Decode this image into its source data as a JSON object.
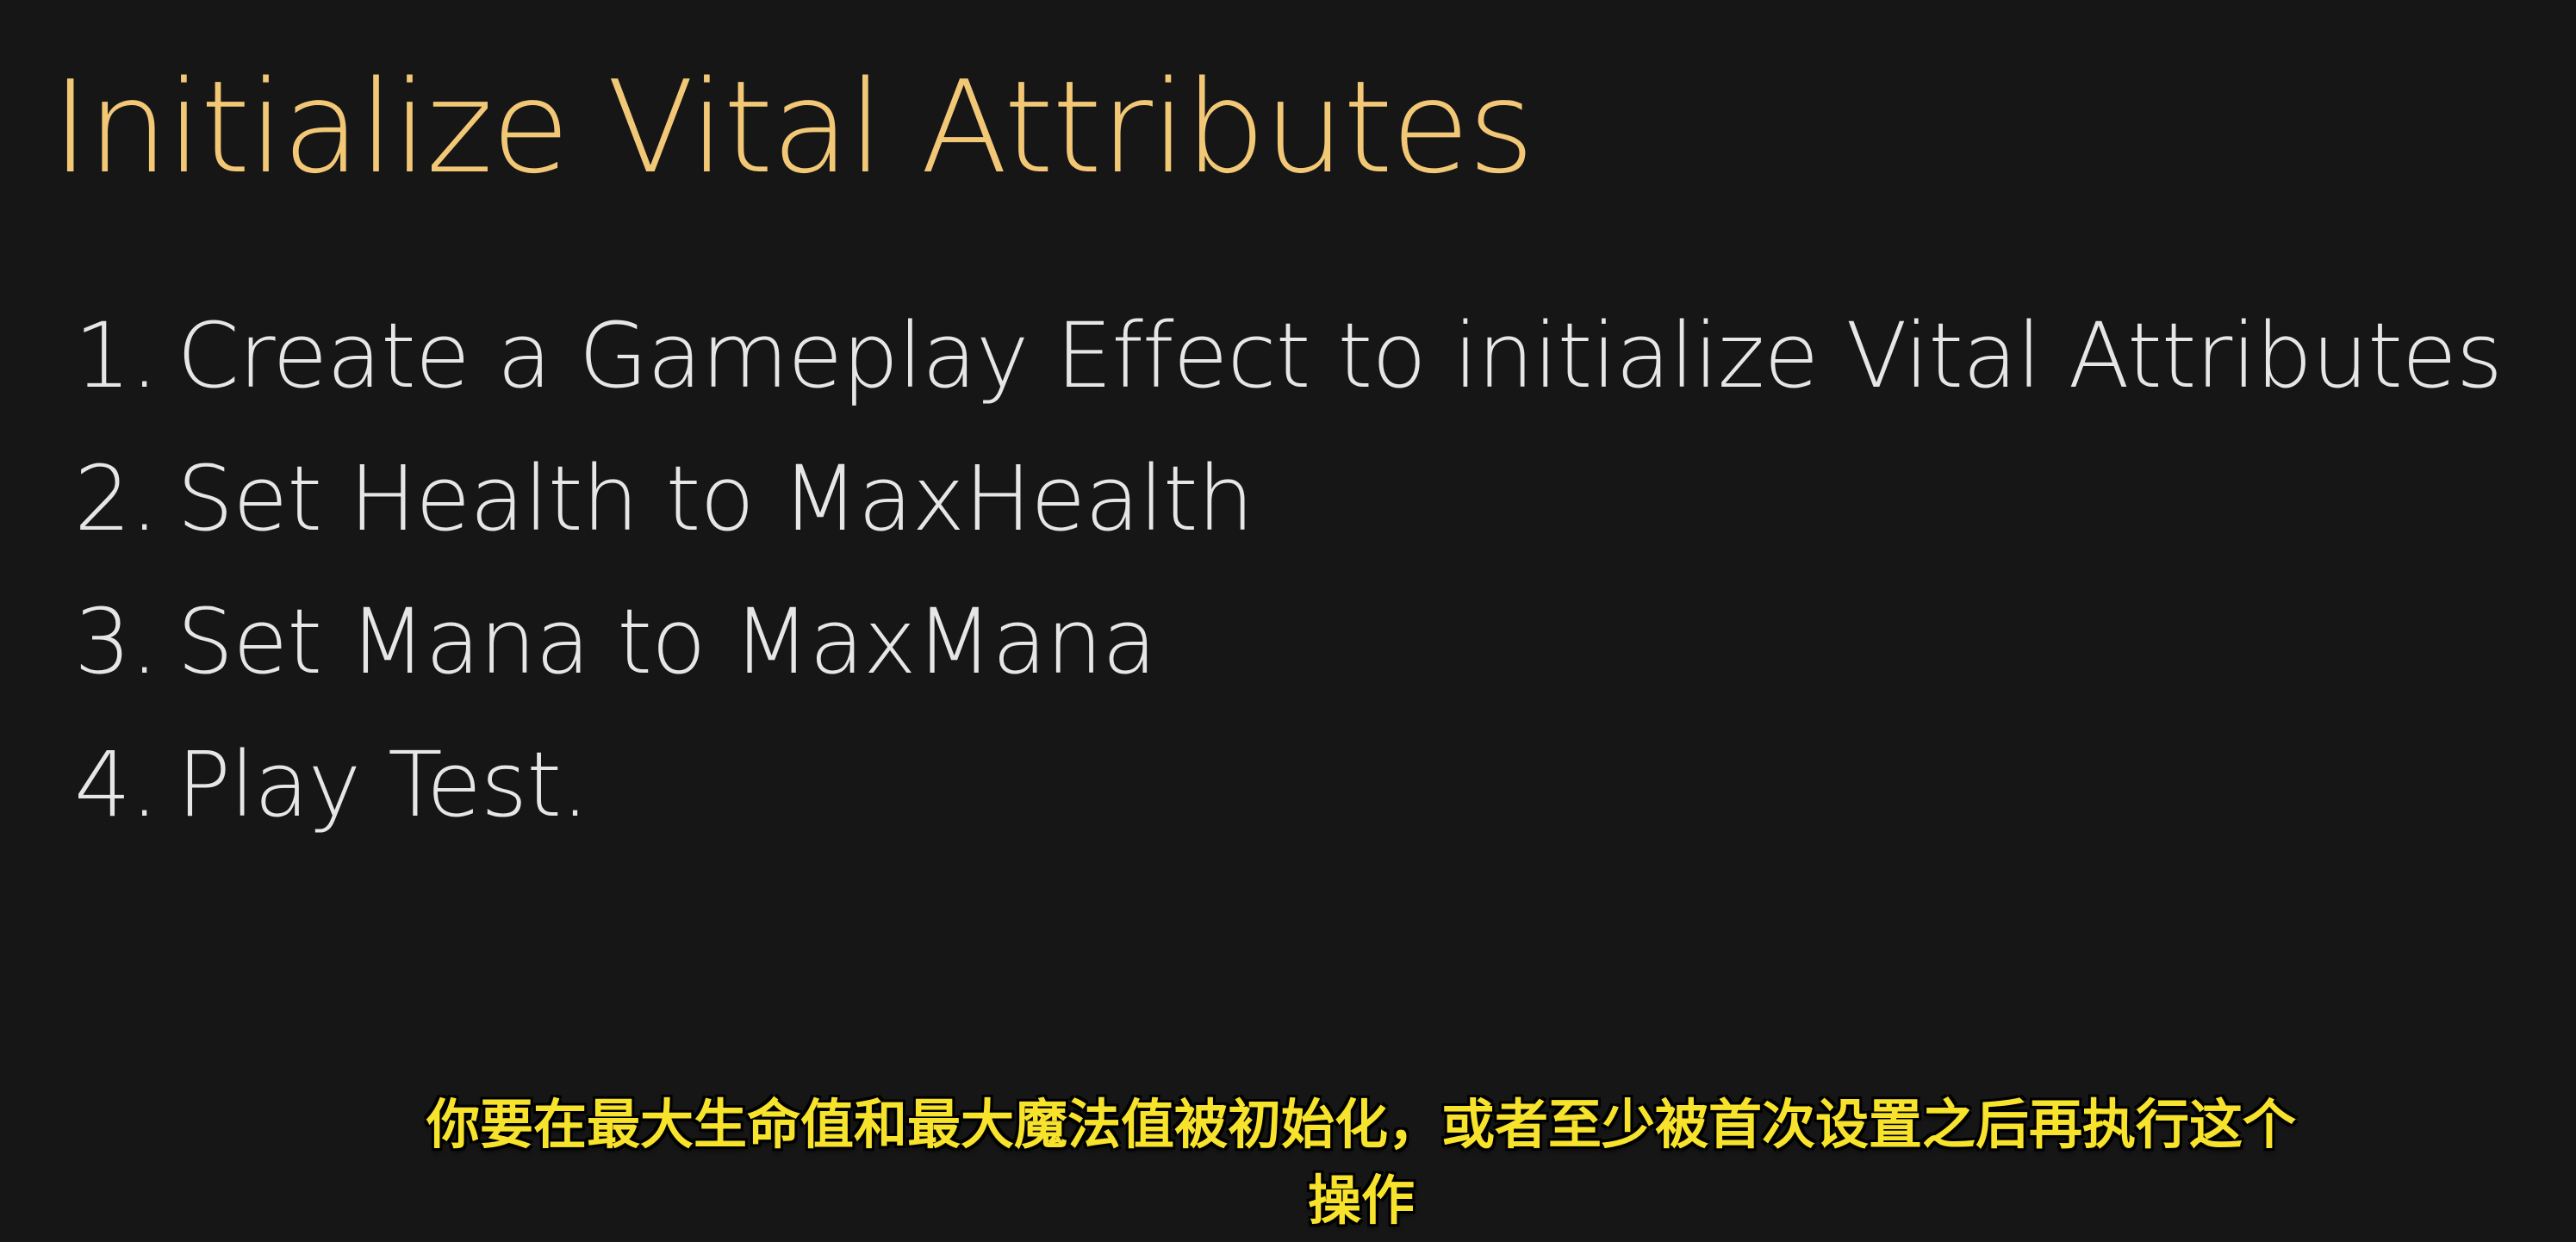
{
  "slide": {
    "title": "Initialize Vital Attributes",
    "steps": [
      {
        "num": "1.",
        "text": "Create a Gameplay Effect to initialize Vital Attributes"
      },
      {
        "num": "2.",
        "text": "Set Health to MaxHealth"
      },
      {
        "num": "3.",
        "text": "Set Mana to MaxMana"
      },
      {
        "num": "4.",
        "text": "Play Test."
      }
    ]
  },
  "subtitle": {
    "line1": "你要在最大生命值和最大魔法值被初始化，或者至少被首次设置之后再执行这个",
    "line2": "操作"
  },
  "colors": {
    "background": "#161616",
    "title": "#f2c877",
    "body_text": "#e6e6e6",
    "subtitle": "#f7e32c"
  }
}
